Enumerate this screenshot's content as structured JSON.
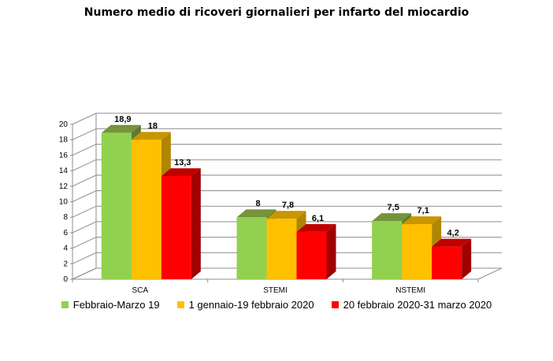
{
  "chart_data": {
    "type": "bar",
    "title": "Numero medio di ricoveri giornalieri per infarto del miocardio",
    "categories": [
      "SCA",
      "STEMI",
      "NSTEMI"
    ],
    "series": [
      {
        "name": "Febbraio-Marzo 19",
        "values": [
          18.9,
          8,
          7.5
        ],
        "labels": [
          "18,9",
          "8",
          "7,5"
        ],
        "color": "#92d050",
        "top": "#77933c",
        "side": "#5f7a30"
      },
      {
        "name": "1 gennaio-19 febbraio 2020",
        "values": [
          18,
          7.8,
          7.1
        ],
        "labels": [
          "18",
          "7,8",
          "7,1"
        ],
        "color": "#ffc000",
        "top": "#c89600",
        "side": "#b08500"
      },
      {
        "name": "20 febbraio 2020-31 marzo 2020",
        "values": [
          13.3,
          6.1,
          4.2
        ],
        "labels": [
          "13,3",
          "6,1",
          "4,2"
        ],
        "color": "#ff0000",
        "top": "#c00000",
        "side": "#a00000"
      }
    ],
    "ylim": [
      0,
      20
    ],
    "yticks": [
      "0",
      "2",
      "4",
      "6",
      "8",
      "10",
      "12",
      "14",
      "16",
      "18",
      "20"
    ],
    "grid": true,
    "legend": "bottom"
  }
}
